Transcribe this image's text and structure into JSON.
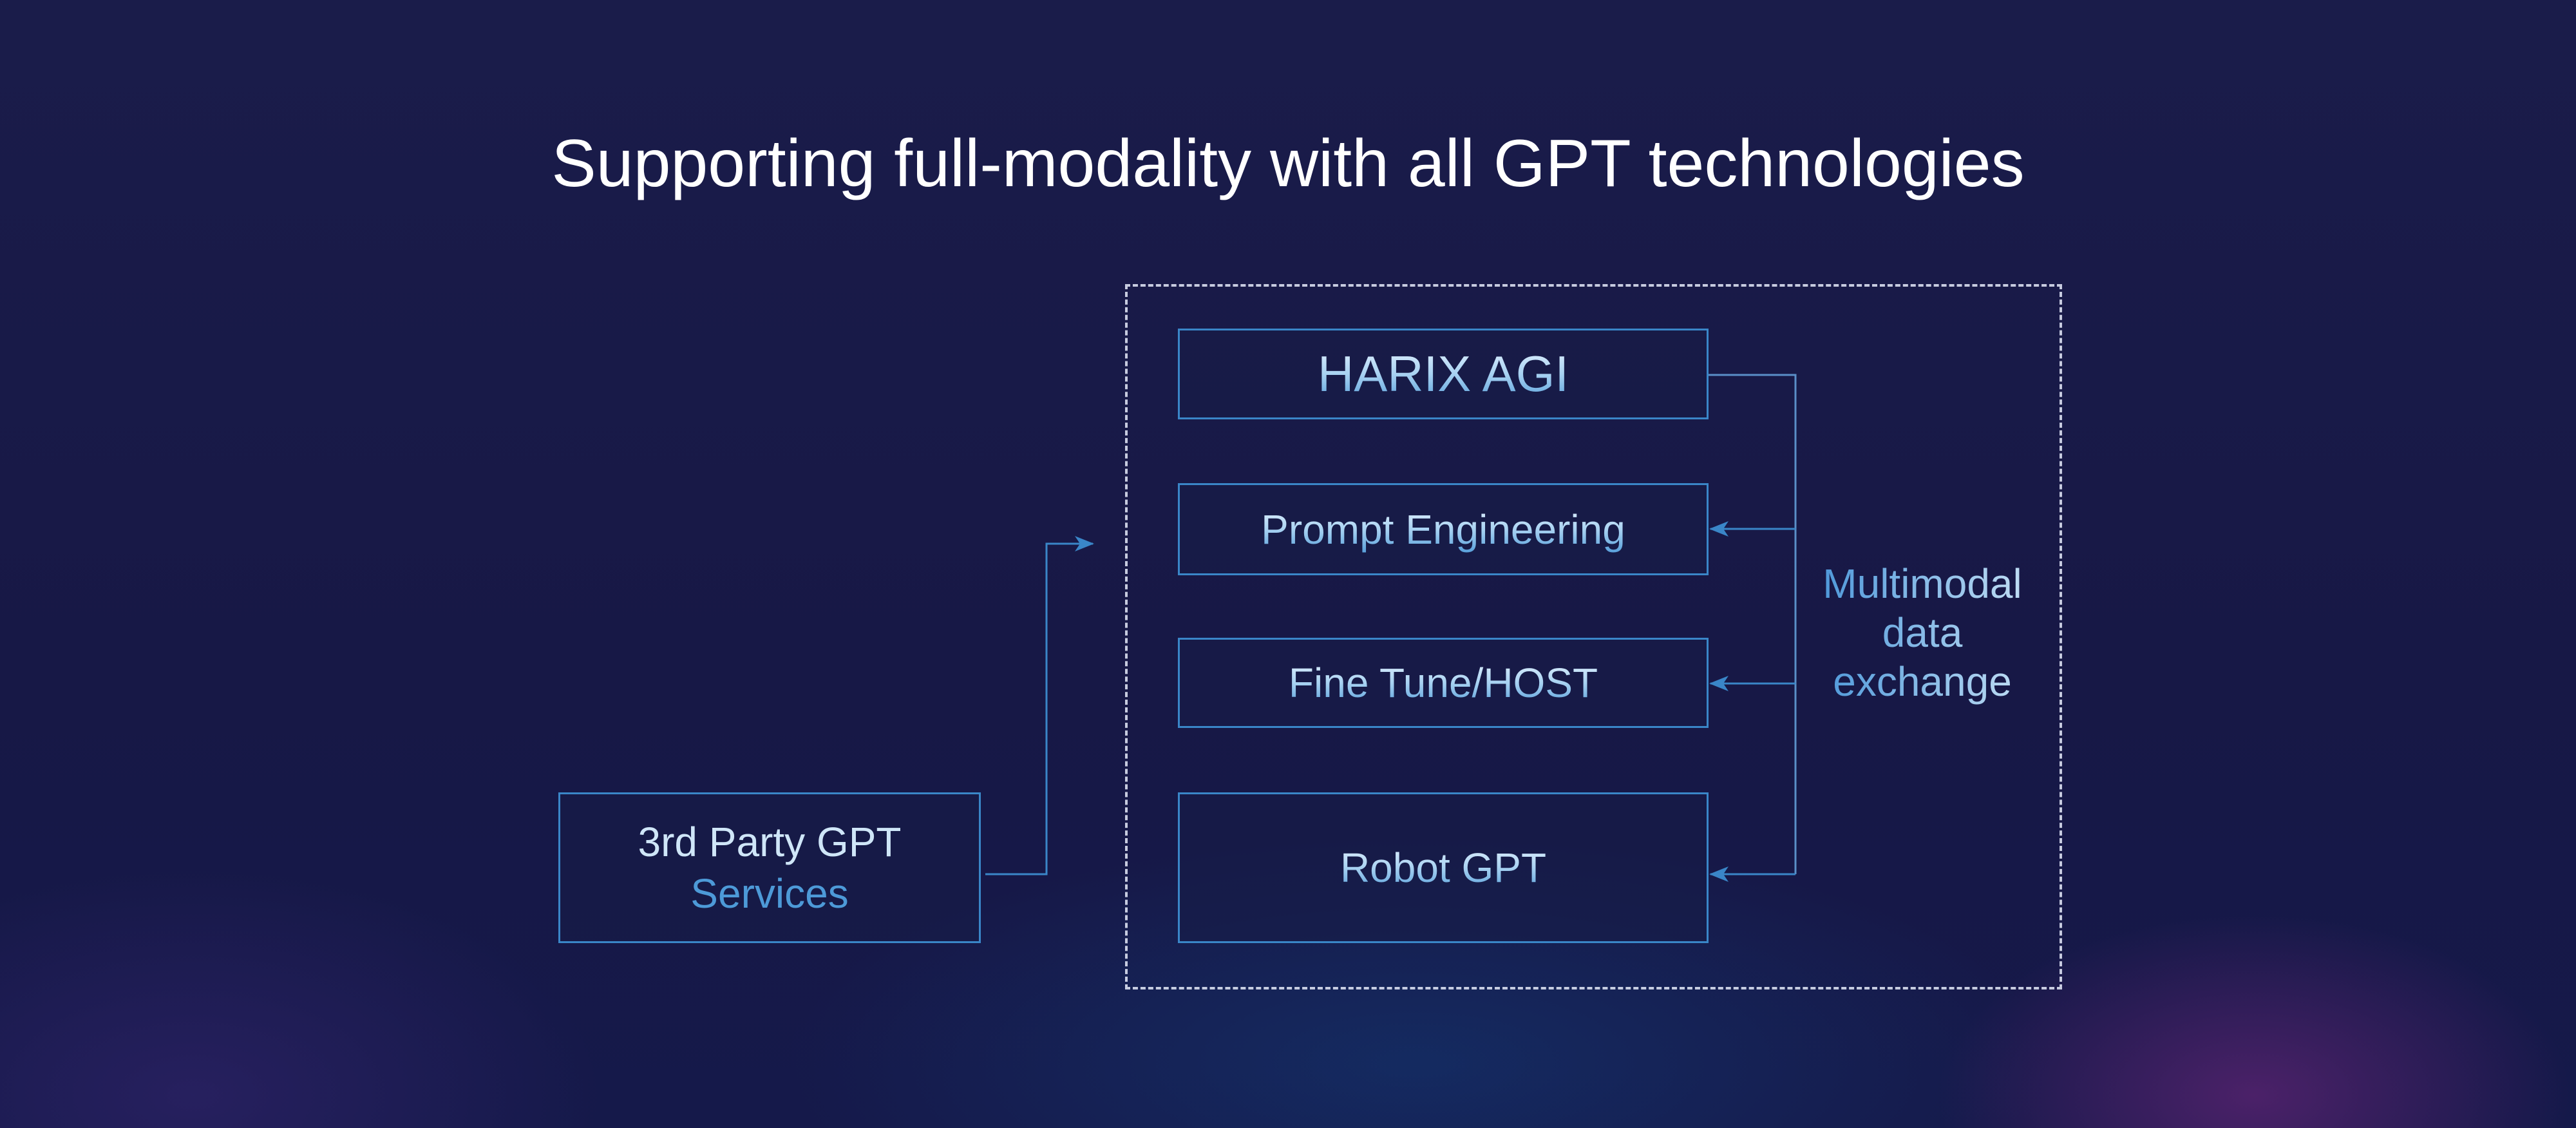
{
  "title": "Supporting full-modality with all GPT technologies",
  "platform_boxes": [
    {
      "label": "HARIX AGI"
    },
    {
      "label": "Prompt Engineering"
    },
    {
      "label": "Fine Tune/HOST"
    },
    {
      "label": "Robot GPT"
    }
  ],
  "third_party": {
    "line1": "3rd Party GPT",
    "line2": "Services"
  },
  "exchange_label": {
    "line1": "Multimodal",
    "line2": "data",
    "line3": "exchange"
  },
  "colors": {
    "background": "#171846",
    "border": "#3a86c8",
    "accent": "#4d9ad8",
    "text": "#ffffff"
  }
}
